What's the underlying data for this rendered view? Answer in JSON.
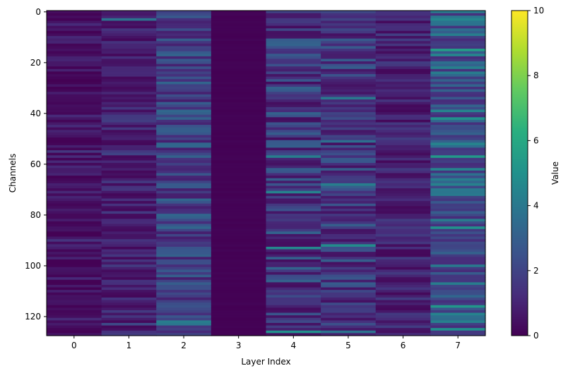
{
  "chart_data": {
    "type": "heatmap",
    "title": "",
    "xlabel": "Layer Index",
    "ylabel": "Channels",
    "colorbar_label": "Value",
    "colormap": "viridis",
    "x_categories": [
      "0",
      "1",
      "2",
      "3",
      "4",
      "5",
      "6",
      "7"
    ],
    "y_ticks": [
      0,
      20,
      40,
      60,
      80,
      100,
      120
    ],
    "y_range": [
      0,
      127
    ],
    "y_inverted": true,
    "value_range": [
      0,
      10
    ],
    "colorbar_ticks": [
      0,
      2,
      4,
      6,
      8,
      10
    ],
    "grid": false,
    "layer_value_profiles": [
      {
        "layer": "0",
        "typical_min": 0.0,
        "typical_max": 1.2,
        "notable_rows": {
          "55": 1.6,
          "90": 1.5,
          "73": 1.0
        }
      },
      {
        "layer": "1",
        "typical_min": 0.2,
        "typical_max": 1.8,
        "notable_rows": {
          "3": 3.8,
          "56": 2.0,
          "123": 2.2
        }
      },
      {
        "layer": "2",
        "typical_min": 0.8,
        "typical_max": 3.4,
        "notable_rows": {
          "122": 4.2,
          "123": 4.0,
          "17": 3.2,
          "53": 3.3
        }
      },
      {
        "layer": "3",
        "typical_min": 0.0,
        "typical_max": 0.1,
        "notable_rows": {}
      },
      {
        "layer": "4",
        "typical_min": 0.3,
        "typical_max": 3.2,
        "notable_rows": {
          "57": 4.2,
          "71": 4.4,
          "93": 4.6,
          "126": 5.0
        }
      },
      {
        "layer": "5",
        "typical_min": 0.4,
        "typical_max": 3.0,
        "notable_rows": {
          "34": 4.0,
          "51": 3.6,
          "68": 4.2,
          "92": 4.8,
          "126": 3.8
        }
      },
      {
        "layer": "6",
        "typical_min": 0.2,
        "typical_max": 1.8,
        "notable_rows": {}
      },
      {
        "layer": "7",
        "typical_min": 1.2,
        "typical_max": 4.6,
        "notable_rows": {
          "15": 5.5,
          "42": 5.0,
          "57": 5.3,
          "85": 5.0,
          "116": 5.2,
          "125": 5.0
        }
      }
    ]
  }
}
